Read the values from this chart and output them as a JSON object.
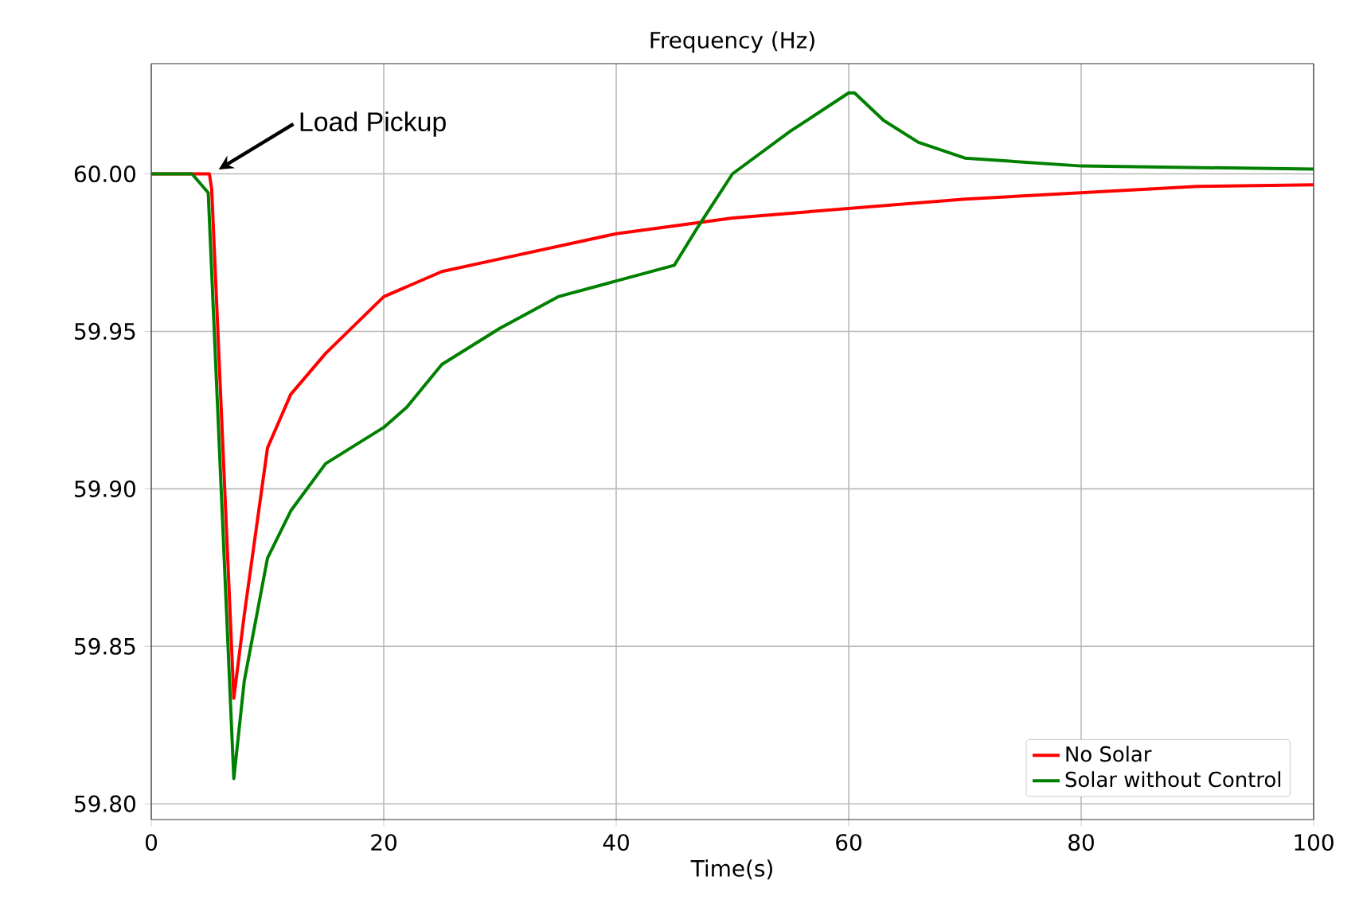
{
  "chart_data": {
    "type": "line",
    "title": "Frequency (Hz)",
    "xlabel": "Time(s)",
    "annotations": [
      "Load Pickup"
    ],
    "xlim": [
      0,
      100
    ],
    "ylim": [
      59.795,
      60.035
    ],
    "xticks": [
      0,
      20,
      40,
      60,
      80,
      100
    ],
    "yticks": [
      {
        "value": 59.8,
        "label": "59.80"
      },
      59.85,
      {
        "value": 59.9,
        "label": "59.90"
      },
      59.95,
      {
        "value": 60.0,
        "label": "60.00"
      }
    ],
    "grid": true,
    "legend": "bottom right",
    "marker": "none",
    "line_style": "solid",
    "series": [
      {
        "name": "No Solar",
        "color": "#ff0000",
        "x": [
          0,
          5,
          5.2,
          7.1,
          8,
          10,
          12,
          15,
          20,
          25,
          30,
          40,
          50,
          60,
          70,
          80,
          90,
          100
        ],
        "values": [
          60.0,
          60.0,
          59.995,
          59.8335,
          59.86,
          59.913,
          59.93,
          59.943,
          59.961,
          59.969,
          59.973,
          59.981,
          59.986,
          59.989,
          59.992,
          59.994,
          59.996,
          59.9965
        ]
      },
      {
        "name": "Solar without Control",
        "color": "#008000",
        "x": [
          0,
          3.5,
          4.9,
          7.1,
          8,
          10,
          12,
          15,
          20,
          22,
          25,
          30,
          35,
          40,
          45,
          47,
          50,
          55,
          60,
          60.5,
          63,
          66,
          70,
          80,
          100
        ],
        "values": [
          60.0,
          60.0,
          59.994,
          59.808,
          59.839,
          59.878,
          59.893,
          59.908,
          59.9195,
          59.926,
          59.9395,
          59.951,
          59.961,
          59.966,
          59.971,
          59.983,
          60.0,
          60.0136,
          60.0257,
          60.0257,
          60.017,
          60.01,
          60.005,
          60.0025,
          60.0015
        ]
      }
    ]
  }
}
